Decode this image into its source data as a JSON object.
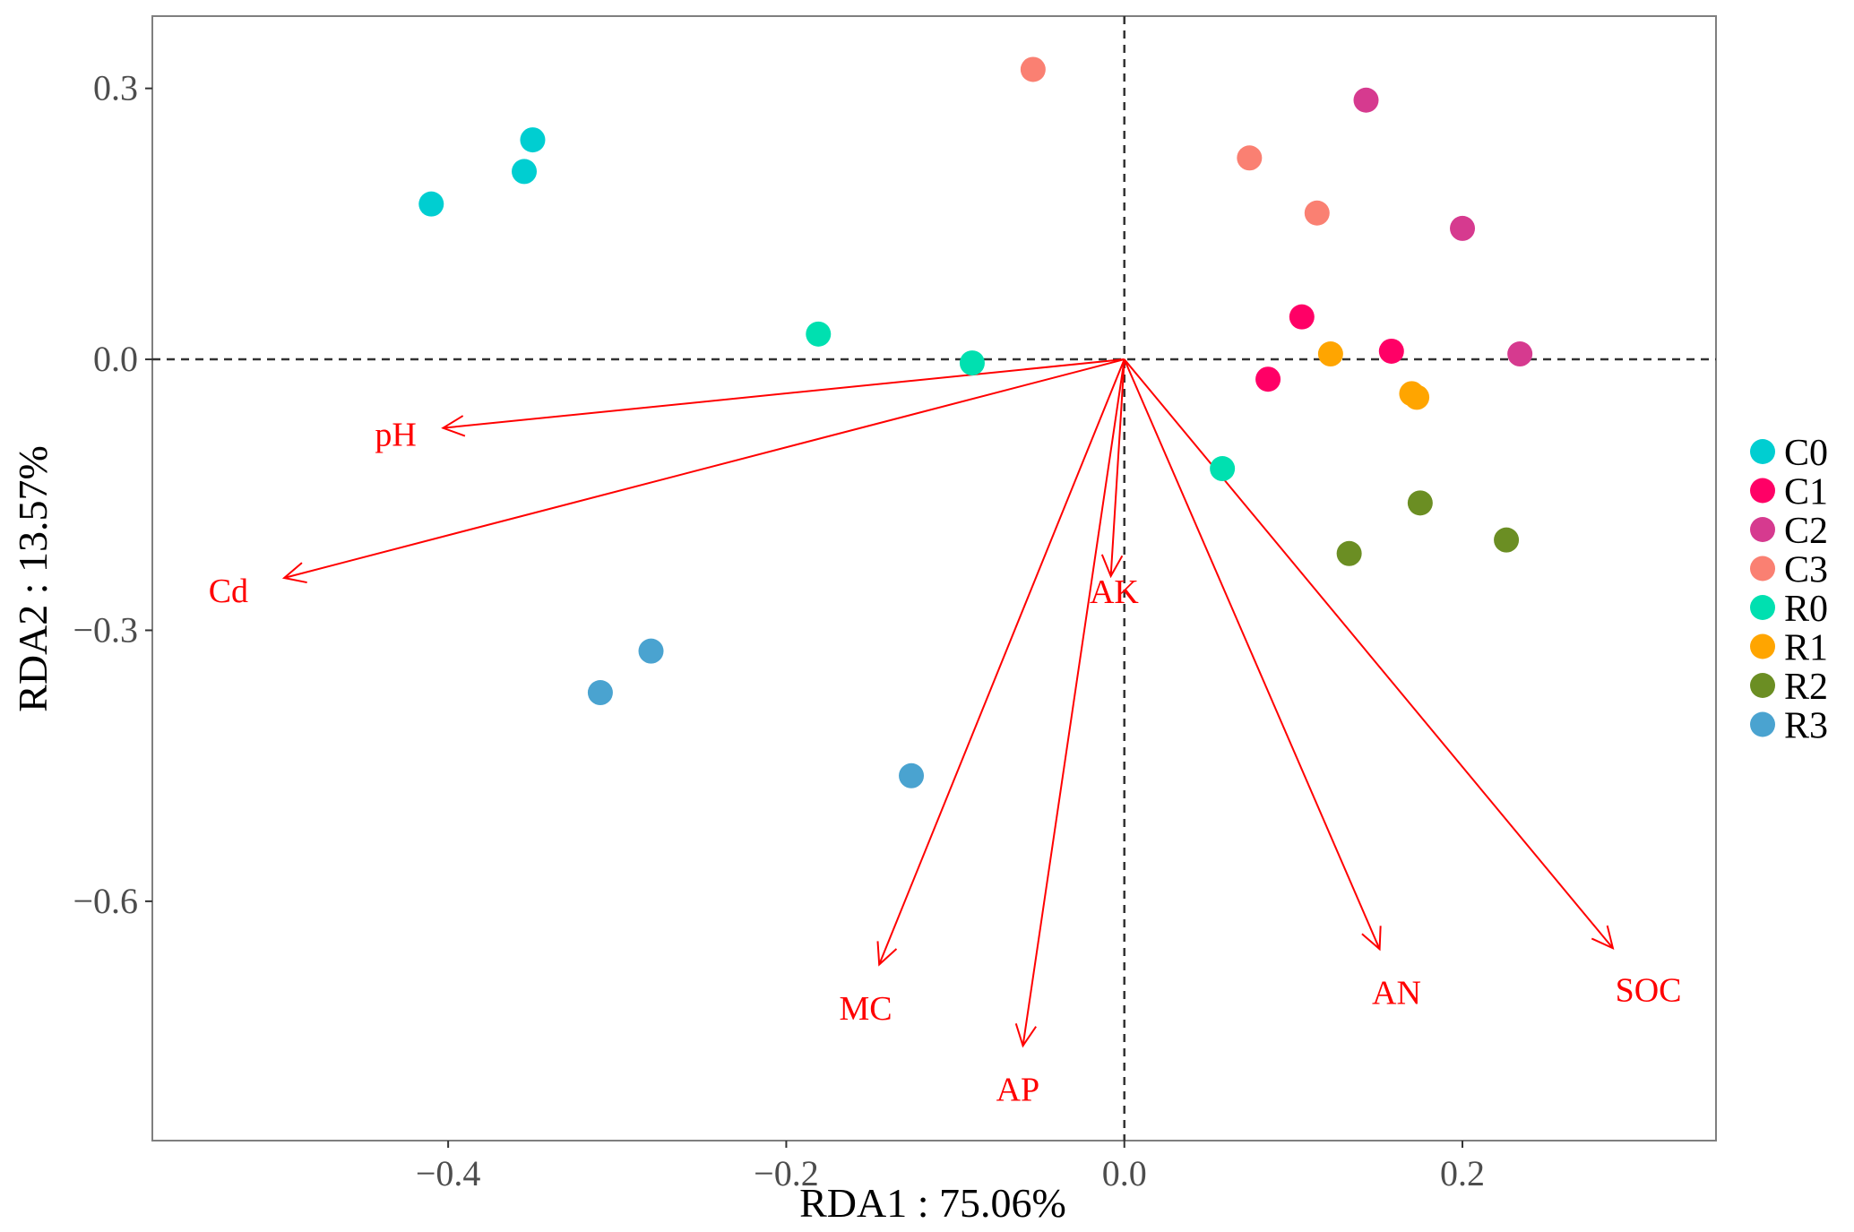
{
  "chart_data": {
    "type": "scatter",
    "subtype": "rda-biplot",
    "xlabel": "RDA1 : 75.06%",
    "ylabel": "RDA2 : 13.57%",
    "xlim": [
      -0.575,
      0.35
    ],
    "ylim": [
      -0.865,
      0.38
    ],
    "x_ticks": [
      {
        "value": -0.4,
        "label": "−0.4"
      },
      {
        "value": -0.2,
        "label": "−0.2"
      },
      {
        "value": 0.0,
        "label": "0.0"
      },
      {
        "value": 0.2,
        "label": "0.2"
      }
    ],
    "y_ticks": [
      {
        "value": 0.3,
        "label": "0.3"
      },
      {
        "value": 0.0,
        "label": "0.0"
      },
      {
        "value": -0.3,
        "label": "−0.3"
      },
      {
        "value": -0.6,
        "label": "−0.6"
      }
    ],
    "reference_lines": {
      "x": 0,
      "y": 0,
      "style": "dashed"
    },
    "grid": false,
    "legend_position": "right",
    "arrow_color": "#ff0000",
    "series": [
      {
        "name": "C0",
        "color": "#00CED1",
        "points": [
          [
            -0.41,
            0.172
          ],
          [
            -0.35,
            0.243
          ],
          [
            -0.355,
            0.208
          ]
        ]
      },
      {
        "name": "C1",
        "color": "#FF0066",
        "points": [
          [
            0.085,
            -0.022
          ],
          [
            0.105,
            0.047
          ],
          [
            0.158,
            0.009
          ]
        ]
      },
      {
        "name": "C2",
        "color": "#D63A8F",
        "points": [
          [
            0.143,
            0.287
          ],
          [
            0.2,
            0.145
          ],
          [
            0.234,
            0.006
          ]
        ]
      },
      {
        "name": "C3",
        "color": "#FA8072",
        "points": [
          [
            -0.054,
            0.321
          ],
          [
            0.074,
            0.223
          ],
          [
            0.114,
            0.162
          ]
        ]
      },
      {
        "name": "R0",
        "color": "#00E0B0",
        "points": [
          [
            -0.181,
            0.028
          ],
          [
            -0.09,
            -0.004
          ],
          [
            0.058,
            -0.121
          ]
        ]
      },
      {
        "name": "R1",
        "color": "#FFA500",
        "points": [
          [
            0.122,
            0.006
          ],
          [
            0.17,
            -0.038
          ],
          [
            0.173,
            -0.042
          ]
        ]
      },
      {
        "name": "R2",
        "color": "#6B8E23",
        "points": [
          [
            0.133,
            -0.215
          ],
          [
            0.175,
            -0.159
          ],
          [
            0.226,
            -0.2
          ]
        ]
      },
      {
        "name": "R3",
        "color": "#4AA3D0",
        "points": [
          [
            -0.31,
            -0.369
          ],
          [
            -0.28,
            -0.323
          ],
          [
            -0.126,
            -0.461
          ]
        ]
      }
    ],
    "vectors": [
      {
        "name": "pH",
        "end": [
          -0.403,
          -0.076
        ],
        "label_at": [
          -0.431,
          -0.083
        ]
      },
      {
        "name": "Cd",
        "end": [
          -0.497,
          -0.242
        ],
        "label_at": [
          -0.53,
          -0.256
        ]
      },
      {
        "name": "AK",
        "end": [
          -0.008,
          -0.24
        ],
        "label_at": [
          -0.006,
          -0.257
        ]
      },
      {
        "name": "MC",
        "end": [
          -0.145,
          -0.67
        ],
        "label_at": [
          -0.153,
          -0.718
        ]
      },
      {
        "name": "AP",
        "end": [
          -0.06,
          -0.76
        ],
        "label_at": [
          -0.063,
          -0.808
        ]
      },
      {
        "name": "AN",
        "end": [
          0.151,
          -0.653
        ],
        "label_at": [
          0.161,
          -0.701
        ]
      },
      {
        "name": "SOC",
        "end": [
          0.289,
          -0.652
        ],
        "label_at": [
          0.31,
          -0.698
        ]
      }
    ]
  }
}
